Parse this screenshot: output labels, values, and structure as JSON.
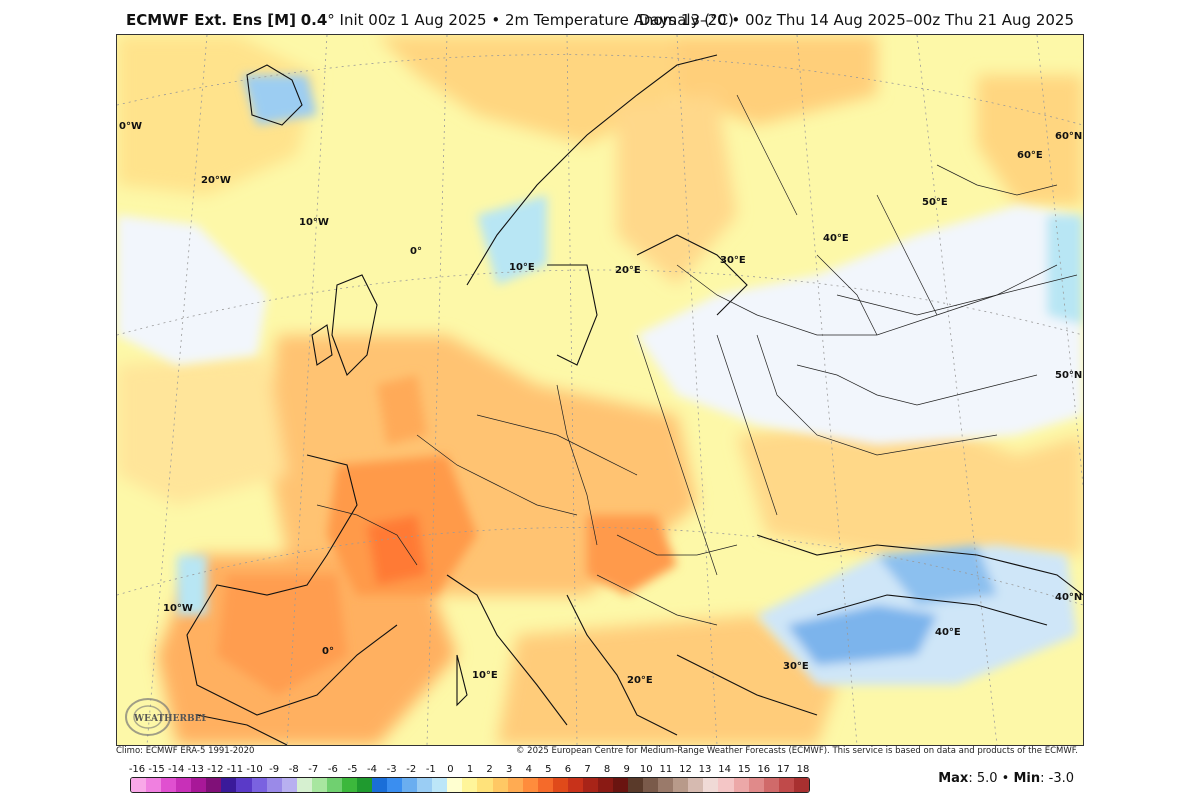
{
  "header": {
    "model": "ECMWF Ext. Ens [M]",
    "resolution": "0.4",
    "degree": "°",
    "init": " Init 00z 1 Aug 2025 • 2m Temperature Anomaly (°C)",
    "valid": "Days 13–20 • 00z Thu 14 Aug 2025–00z Thu 21 Aug 2025"
  },
  "map": {
    "lon_labels": [
      "0°W",
      "20°W",
      "10°W",
      "0°",
      "10°E",
      "20°E",
      "30°E",
      "40°E",
      "50°E",
      "60°E",
      "10°W",
      "0°",
      "10°E",
      "20°E",
      "30°E",
      "40°E"
    ],
    "lat_labels": [
      "60°N",
      "50°N",
      "40°N"
    ]
  },
  "footer": {
    "climo": "Climo: ECMWF ERA-5 1991-2020",
    "copyright": "© 2025 European Centre for Medium-Range Weather Forecasts (ECMWF). This service is based on data and products of the ECMWF."
  },
  "colorbar": {
    "labels": [
      "-16",
      "-15",
      "-14",
      "-13",
      "-12",
      "-11",
      "-10",
      "-9",
      "-8",
      "-7",
      "-6",
      "-5",
      "-4",
      "-3",
      "-2",
      "-1",
      "0",
      "1",
      "2",
      "3",
      "4",
      "5",
      "6",
      "7",
      "8",
      "9",
      "10",
      "11",
      "12",
      "13",
      "14",
      "15",
      "16",
      "17",
      "18"
    ],
    "colors": [
      "#f9a8e8",
      "#f080e0",
      "#e050d0",
      "#c830b8",
      "#a81898",
      "#801078",
      "#3a1a9a",
      "#5a3ac8",
      "#7a62e0",
      "#9a8ae8",
      "#b8b0f0",
      "#d6f0d0",
      "#a8e6a0",
      "#70d070",
      "#3cb83c",
      "#1f9a2f",
      "#1a6ed8",
      "#3a8ef0",
      "#6aaef0",
      "#9acdf4",
      "#bce6f8",
      "#ffffd0",
      "#fff59a",
      "#ffe27a",
      "#ffc864",
      "#ffab52",
      "#ff8c3c",
      "#f56a2a",
      "#e04a1a",
      "#c8321a",
      "#a82418",
      "#8a1a14",
      "#6a1410",
      "#5a3a2a",
      "#7a5a4a",
      "#9a7a6a",
      "#b89a8a",
      "#d6bab0",
      "#f0dad6",
      "#f4c6c6",
      "#eca8a8",
      "#e08a8a",
      "#d06a6a",
      "#c04a4a",
      "#a83030"
    ]
  },
  "stats": {
    "max_label": "Max",
    "max_value": ": 5.0 • ",
    "min_label": "Min",
    "min_value": ": -3.0"
  },
  "logo": {
    "text": "WEATHERBELL"
  }
}
